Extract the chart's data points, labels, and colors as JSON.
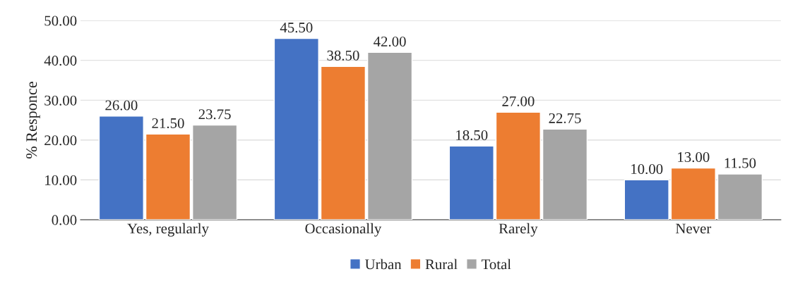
{
  "chart_data": {
    "type": "bar",
    "ylabel": "% Responce",
    "categories": [
      "Yes, regularly",
      "Occasionally",
      "Rarely",
      "Never"
    ],
    "series": [
      {
        "name": "Urban",
        "color": "#4472c4",
        "values": [
          26.0,
          45.5,
          18.5,
          10.0
        ],
        "value_labels": [
          "26.00",
          "45.50",
          "18.50",
          "10.00"
        ]
      },
      {
        "name": "Rural",
        "color": "#ed7d31",
        "values": [
          21.5,
          38.5,
          27.0,
          13.0
        ],
        "value_labels": [
          "21.50",
          "38.50",
          "27.00",
          "13.00"
        ]
      },
      {
        "name": "Total",
        "color": "#a5a5a5",
        "values": [
          23.75,
          42.0,
          22.75,
          11.5
        ],
        "value_labels": [
          "23.75",
          "42.00",
          "22.75",
          "11.50"
        ]
      }
    ],
    "ylim": [
      0,
      50
    ],
    "yticks": [
      {
        "value": 0,
        "label": "0.00"
      },
      {
        "value": 10,
        "label": "10.00"
      },
      {
        "value": 20,
        "label": "20.00"
      },
      {
        "value": 30,
        "label": "30.00"
      },
      {
        "value": 40,
        "label": "40.00"
      },
      {
        "value": 50,
        "label": "50.00"
      }
    ],
    "grid": "y",
    "legend": "bottom"
  }
}
